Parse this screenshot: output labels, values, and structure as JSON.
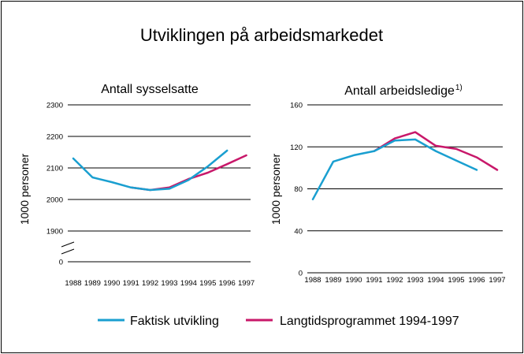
{
  "title": "Utviklingen på arbeidsmarkedet",
  "legend": [
    {
      "label": "Faktisk utvikling",
      "color": "#1a9fd0"
    },
    {
      "label": "Langtidsprogrammet 1994-1997",
      "color": "#c8186a"
    }
  ],
  "chart_data": [
    {
      "type": "line",
      "title": "Antall sysselsatte",
      "ylabel": "1000 personer",
      "xlabel": "",
      "categories": [
        "1988",
        "1989",
        "1990",
        "1991",
        "1992",
        "1993",
        "1994",
        "1995",
        "1996",
        "1997"
      ],
      "y_ticks": [
        {
          "value": 2300,
          "label": "2300"
        },
        {
          "value": 2200,
          "label": "2200"
        },
        {
          "value": 2100,
          "label": "2100"
        },
        {
          "value": 2000,
          "label": "2000"
        },
        {
          "value": 1900,
          "label": "1900"
        },
        {
          "value": 0,
          "label": "0"
        }
      ],
      "ylim": [
        0,
        2300
      ],
      "axis_break": true,
      "grid": true,
      "series": [
        {
          "name": "Faktisk utvikling",
          "color": "#1a9fd0",
          "x": [
            0,
            1,
            2,
            3,
            4,
            5,
            6,
            7,
            8
          ],
          "values": [
            2130,
            2070,
            2055,
            2038,
            2030,
            2034,
            2062,
            2105,
            2155
          ]
        },
        {
          "name": "Langtidsprogrammet 1994-1997",
          "color": "#c8186a",
          "x": [
            3,
            4,
            5,
            6,
            7,
            8,
            9
          ],
          "values": [
            2038,
            2030,
            2038,
            2065,
            2085,
            2112,
            2140
          ]
        }
      ]
    },
    {
      "type": "line",
      "title": "Antall arbeidsledige",
      "title_sup": "1)",
      "ylabel": "1000 personer",
      "xlabel": "",
      "categories": [
        "1988",
        "1989",
        "1990",
        "1991",
        "1992",
        "1993",
        "1994",
        "1995",
        "1996",
        "1997"
      ],
      "y_ticks": [
        {
          "value": 160,
          "label": "160"
        },
        {
          "value": 120,
          "label": "120"
        },
        {
          "value": 80,
          "label": "80"
        },
        {
          "value": 40,
          "label": "40"
        },
        {
          "value": 0,
          "label": "0"
        }
      ],
      "ylim": [
        0,
        160
      ],
      "axis_break": false,
      "grid": true,
      "series": [
        {
          "name": "Faktisk utvikling",
          "color": "#1a9fd0",
          "x": [
            0,
            1,
            2,
            3,
            4,
            5,
            6,
            7,
            8
          ],
          "values": [
            70,
            106,
            112,
            116,
            126,
            127,
            116,
            107,
            98
          ]
        },
        {
          "name": "Langtidsprogrammet 1994-1997",
          "color": "#c8186a",
          "x": [
            3,
            4,
            5,
            6,
            7,
            8,
            9
          ],
          "values": [
            116,
            128,
            134,
            121,
            118,
            110,
            98
          ]
        }
      ]
    }
  ]
}
